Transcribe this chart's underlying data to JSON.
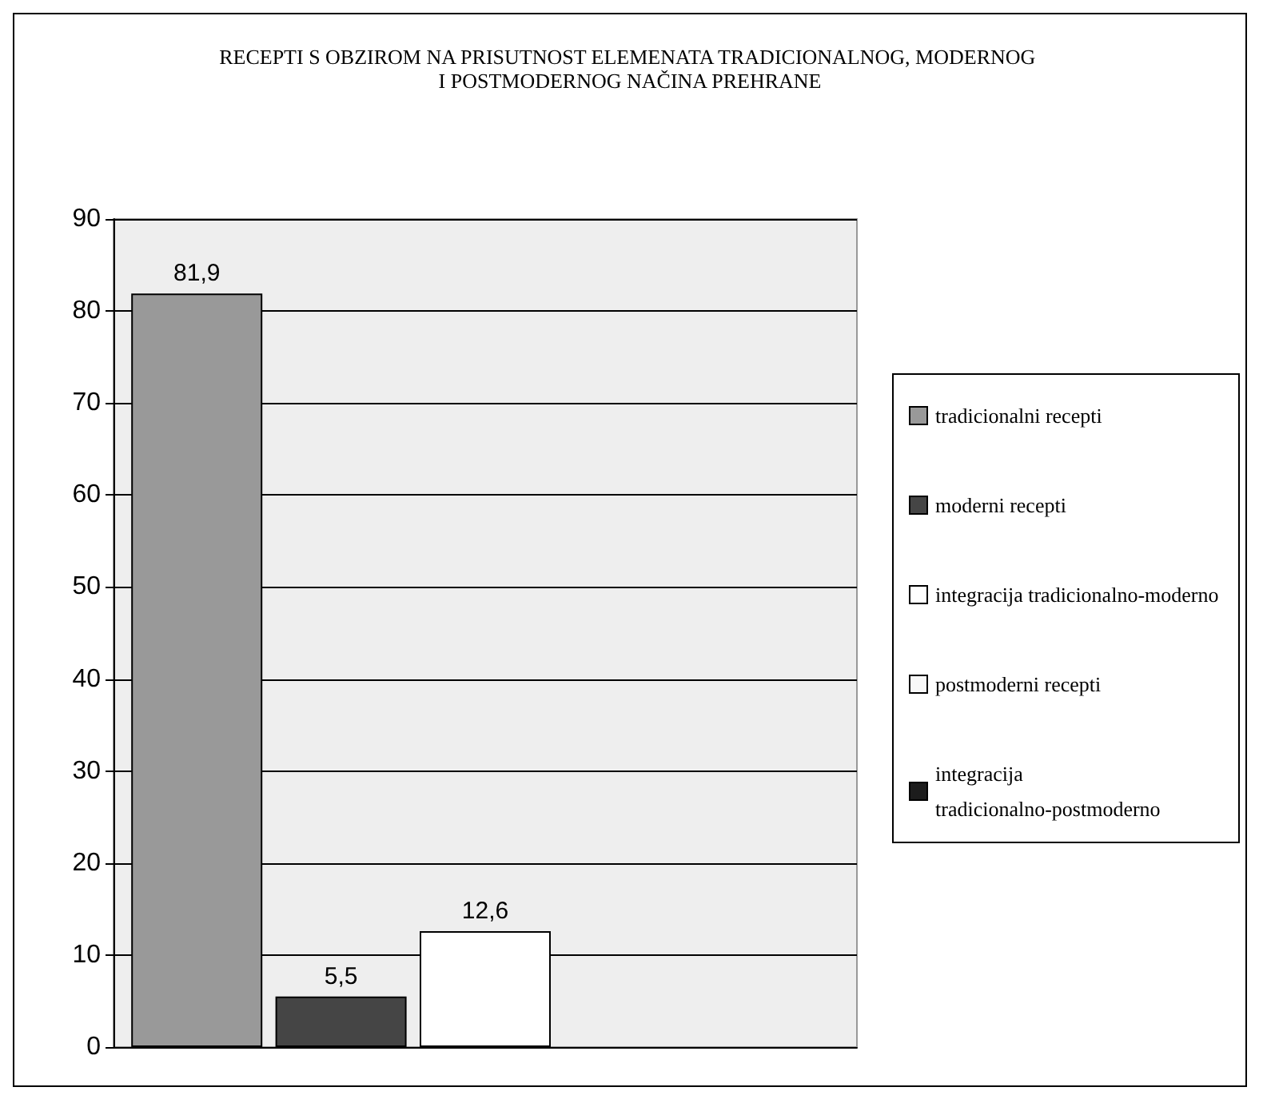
{
  "chart_data": {
    "type": "bar",
    "title": "RECEPTI S OBZIROM NA PRISUTNOST ELEMENATA TRADICIONALNOG, MODERNOG I POSTMODERNOG NAČINA PREHRANE",
    "categories": [
      null
    ],
    "series": [
      {
        "name": "tradicionalni recepti",
        "color": "#999999",
        "values": [
          81.9
        ],
        "value_labels": [
          "81,9"
        ]
      },
      {
        "name": "moderni recepti",
        "color": "#454545",
        "values": [
          5.5
        ],
        "value_labels": [
          "5,5"
        ]
      },
      {
        "name": "integracija tradicionalno-moderno",
        "color": "#ffffff",
        "values": [
          12.6
        ],
        "value_labels": [
          "12,6"
        ]
      },
      {
        "name": "postmoderni recepti",
        "color": "#f8f8f8",
        "values": [
          null
        ],
        "value_labels": [
          null
        ]
      },
      {
        "name": "integracija tradicionalno-postmoderno",
        "color": "#1c1c1c",
        "values": [
          null
        ],
        "value_labels": [
          null
        ]
      }
    ],
    "ylim": [
      0,
      90
    ],
    "yticks": [
      0,
      10,
      20,
      30,
      40,
      50,
      60,
      70,
      80,
      90
    ],
    "grid": "y",
    "legend": "right"
  }
}
